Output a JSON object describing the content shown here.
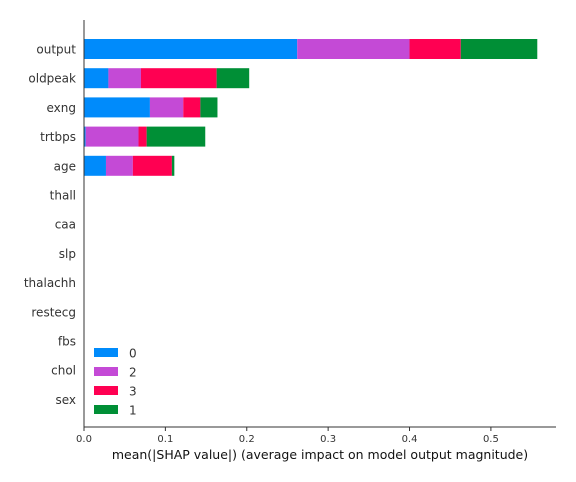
{
  "chart_data": {
    "type": "bar",
    "orientation": "horizontal",
    "stacked": true,
    "xlabel": "mean(|SHAP value|) (average impact on model output magnitude)",
    "ylabel": "",
    "xlim": [
      0,
      0.58
    ],
    "xticks": [
      "0.0",
      "0.1",
      "0.2",
      "0.3",
      "0.4",
      "0.5"
    ],
    "xtick_values": [
      0,
      0.1,
      0.2,
      0.3,
      0.4,
      0.5
    ],
    "grid": false,
    "legend_position": "lower-left",
    "categories": [
      "output",
      "oldpeak",
      "exng",
      "trtbps",
      "age",
      "thall",
      "caa",
      "slp",
      "thalachh",
      "restecg",
      "fbs",
      "chol",
      "sex"
    ],
    "series": [
      {
        "name": "0",
        "color": "#008bfb",
        "values": [
          0.262,
          0.03,
          0.081,
          0.002,
          0.027,
          0,
          0,
          0,
          0,
          0,
          0,
          0,
          0
        ]
      },
      {
        "name": "2",
        "color": "#c44ad6",
        "values": [
          0.138,
          0.04,
          0.041,
          0.065,
          0.033,
          0,
          0,
          0,
          0,
          0,
          0,
          0,
          0
        ]
      },
      {
        "name": "3",
        "color": "#ff0052",
        "values": [
          0.063,
          0.093,
          0.021,
          0.01,
          0.048,
          0,
          0,
          0,
          0,
          0,
          0,
          0,
          0
        ]
      },
      {
        "name": "1",
        "color": "#008f36",
        "values": [
          0.094,
          0.04,
          0.021,
          0.072,
          0.003,
          0,
          0,
          0,
          0,
          0,
          0,
          0,
          0
        ]
      }
    ]
  }
}
